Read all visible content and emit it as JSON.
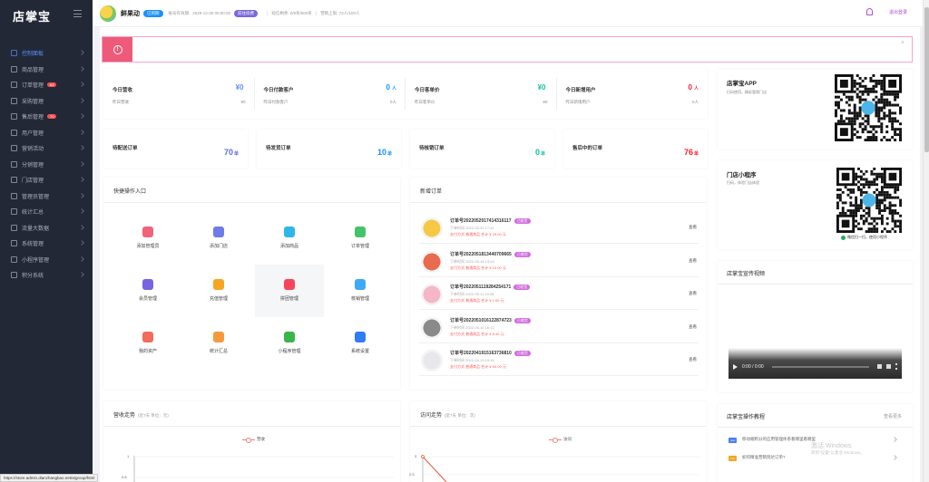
{
  "sidebar": {
    "logo": "店掌宝",
    "items": [
      {
        "label": "控制面板",
        "active": true,
        "badge": ""
      },
      {
        "label": "商品管理",
        "badge": ""
      },
      {
        "label": "订单管理",
        "badge": "63"
      },
      {
        "label": "采购管理",
        "badge": ""
      },
      {
        "label": "售后管理",
        "badge": "70"
      },
      {
        "label": "用户管理",
        "badge": ""
      },
      {
        "label": "营销活动",
        "badge": ""
      },
      {
        "label": "分销管理",
        "badge": ""
      },
      {
        "label": "门店管理",
        "badge": ""
      },
      {
        "label": "管理员管理",
        "badge": ""
      },
      {
        "label": "统计汇总",
        "badge": ""
      },
      {
        "label": "流量大数据",
        "badge": ""
      },
      {
        "label": "系统管理",
        "badge": ""
      },
      {
        "label": "小程序管理",
        "badge": ""
      },
      {
        "label": "积分系统",
        "badge": ""
      }
    ],
    "status_url": "https://store.admin.dianzhangbao.net/a/group/html"
  },
  "header": {
    "shop_name": "鲜果动",
    "status_tag": "已到期",
    "valid_label": "账号有效期:",
    "valid_value": "2029-12-30 00:00:00",
    "renew_button": "前往续费",
    "stat1": "短信剩余: 0/5条/500条",
    "stat2": "营销上限: 72人/100人",
    "logout": "退出登录"
  },
  "colors": {
    "accent": "#5b8ff9",
    "pink": "#ee5a79",
    "purple": "#b14cd6",
    "green": "#2ca85a",
    "red": "#f5222d"
  },
  "stats": [
    {
      "title": "今日营收",
      "value": "¥0",
      "unit": "",
      "sub": "昨日营收",
      "subval": "¥0",
      "color": "#5b8ff9"
    },
    {
      "title": "今日付款客户",
      "value": "0",
      "unit": "人",
      "sub": "昨日付款客户",
      "subval": "0人",
      "color": "#1890ff"
    },
    {
      "title": "今日客单价",
      "value": "¥0",
      "unit": "",
      "sub": "昨日客单价",
      "subval": "¥0",
      "color": "#13c2a0"
    },
    {
      "title": "今日新增用户",
      "value": "0",
      "unit": "人",
      "sub": "昨日新增用户",
      "subval": "0人",
      "color": "#f5222d"
    }
  ],
  "orders_summary": [
    {
      "title": "待配送订单",
      "value": "70",
      "unit": "单",
      "color": "#5b6fd9"
    },
    {
      "title": "待发货订单",
      "value": "10",
      "unit": "单",
      "color": "#1890ff"
    },
    {
      "title": "待核销订单",
      "value": "0",
      "unit": "单",
      "color": "#13c2a0"
    },
    {
      "title": "售后中的订单",
      "value": "76",
      "unit": "单",
      "color": "#f5222d"
    }
  ],
  "quick": {
    "title": "快捷操作入口",
    "items": [
      {
        "label": "添加管理员",
        "icon": "add-user-icon",
        "color": "#f0637a"
      },
      {
        "label": "添加门店",
        "icon": "store-icon",
        "color": "#6f7be8"
      },
      {
        "label": "添加商品",
        "icon": "box-icon",
        "color": "#31b6e8"
      },
      {
        "label": "订单管理",
        "icon": "basket-icon",
        "color": "#42c56a"
      },
      {
        "label": "会员管理",
        "icon": "diamond-icon",
        "color": "#7a63e0"
      },
      {
        "label": "充值管理",
        "icon": "gift-icon",
        "color": "#f5a623"
      },
      {
        "label": "拼团管理",
        "icon": "flame-icon",
        "color": "#f5455c"
      },
      {
        "label": "核销管理",
        "icon": "tag-icon",
        "color": "#3fa9f5"
      },
      {
        "label": "我的资产",
        "icon": "money-bag-icon",
        "color": "#f26b5b"
      },
      {
        "label": "统计汇总",
        "icon": "bar-chart-icon",
        "color": "#f59a3c"
      },
      {
        "label": "小程序管理",
        "icon": "link-icon",
        "color": "#39b54a"
      },
      {
        "label": "系统设置",
        "icon": "gear-icon",
        "color": "#2f7cf6"
      }
    ]
  },
  "new_orders": {
    "title": "新增订单",
    "view_label": "查看",
    "items": [
      {
        "no": "订单号2022052017414316117",
        "status": "已收货",
        "time": "下单时间 2022-05-20 17:41",
        "pay": "支付方式 普通商品  合计 ¥ 29.00 元",
        "thumb_color": "#f6c945"
      },
      {
        "no": "订单号2022051813440709665",
        "status": "已收货",
        "time": "下单时间 2022-05-18 13:44",
        "pay": "支付方式 普通商品  合计 ¥ 15.00 元",
        "thumb_color": "#e86a4f"
      },
      {
        "no": "订单号2022051119284254171",
        "status": "已收货",
        "time": "下单时间 2022-05-11 19:28",
        "pay": "支付方式 普通商品  合计 ¥ 1.00 元",
        "thumb_color": "#f4b6c8"
      },
      {
        "no": "订单号2022051016122874723",
        "status": "已收货",
        "time": "下单时间 2022-05-10 16:12",
        "pay": "支付方式 普通商品  合计 ¥ 8.40 元",
        "thumb_color": "#8a8a8a"
      },
      {
        "no": "订单号2022041915163736810",
        "status": "已收货",
        "time": "下单时间 2022-04-19 15:16",
        "pay": "支付方式 普通商品  合计 ¥ 50.00 元",
        "thumb_color": "#e8e8ea"
      }
    ]
  },
  "app_card": {
    "title": "店掌宝APP",
    "sub": "扫码使用，精彩管理门店"
  },
  "mini_card": {
    "title": "门店小程序",
    "sub": "扫码，体验门店体验",
    "caption": "微信扫一扫，使用小程序"
  },
  "video_card": {
    "title": "店掌宝宣传视频",
    "time": "0:00 / 0:00"
  },
  "tutorial": {
    "title": "店掌宝操作教程",
    "more": "查看更多",
    "items": [
      {
        "badge": "new",
        "text": "移动端积分的应用管理体系看哪里看哪里",
        "color": "#4c7cf3"
      },
      {
        "badge": "hot",
        "text": "如何精准营销到达订单?",
        "color": "#f5a623"
      }
    ]
  },
  "revenue_chart": {
    "title": "营收走势",
    "subtitle": "(近7天 单位：元)",
    "legend": "营收"
  },
  "visit_chart": {
    "title": "访问走势",
    "subtitle": "(近7天 单位：次)",
    "legend": "访问"
  },
  "chart_data": [
    {
      "type": "line",
      "title": "营收走势",
      "series": [
        {
          "name": "营收",
          "values": []
        }
      ],
      "y_ticks": [
        "1",
        "0.8"
      ]
    },
    {
      "type": "line",
      "title": "访问走势",
      "series": [
        {
          "name": "访问",
          "values": []
        }
      ],
      "y_ticks": [
        "3",
        "2.5"
      ]
    }
  ],
  "watermark": {
    "line1": "激活 Windows",
    "line2": "转到\"设置\"以激活 Windows。"
  }
}
